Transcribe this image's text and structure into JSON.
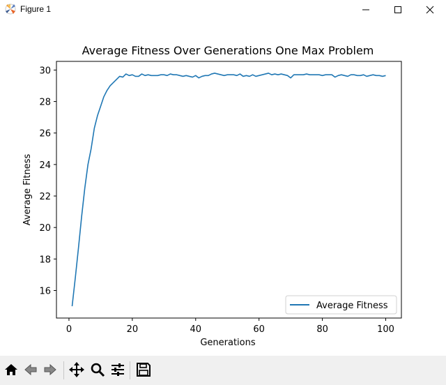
{
  "window": {
    "title": "Figure 1",
    "minimize_icon": "minimize-icon",
    "maximize_icon": "maximize-icon",
    "close_icon": "close-icon"
  },
  "toolbar": {
    "buttons": [
      {
        "name": "home-icon"
      },
      {
        "name": "back-arrow-icon"
      },
      {
        "name": "forward-arrow-icon"
      },
      {
        "name": "pan-move-icon"
      },
      {
        "name": "zoom-magnifier-icon"
      },
      {
        "name": "configure-subplots-icon"
      },
      {
        "name": "save-floppy-icon"
      }
    ]
  },
  "chart_data": {
    "type": "line",
    "title": "Average Fitness Over Generations One Max Problem",
    "xlabel": "Generations",
    "ylabel": "Average Fitness",
    "xlim": [
      -3.95,
      104.95
    ],
    "ylim": [
      14.25,
      30.55
    ],
    "xticks": [
      0,
      20,
      40,
      60,
      80,
      100
    ],
    "yticks": [
      16,
      18,
      20,
      22,
      24,
      26,
      28,
      30
    ],
    "grid": false,
    "legend_location": "lower right",
    "series": [
      {
        "name": "Average Fitness",
        "color": "#1f77b4",
        "x": [
          1,
          2,
          3,
          4,
          5,
          6,
          7,
          8,
          9,
          10,
          11,
          12,
          13,
          14,
          15,
          16,
          17,
          18,
          19,
          20,
          21,
          22,
          23,
          24,
          25,
          26,
          27,
          28,
          29,
          30,
          31,
          32,
          33,
          34,
          35,
          36,
          37,
          38,
          39,
          40,
          41,
          42,
          43,
          44,
          45,
          46,
          47,
          48,
          49,
          50,
          51,
          52,
          53,
          54,
          55,
          56,
          57,
          58,
          59,
          60,
          61,
          62,
          63,
          64,
          65,
          66,
          67,
          68,
          69,
          70,
          71,
          72,
          73,
          74,
          75,
          76,
          77,
          78,
          79,
          80,
          81,
          82,
          83,
          84,
          85,
          86,
          87,
          88,
          89,
          90,
          91,
          92,
          93,
          94,
          95,
          96,
          97,
          98,
          99,
          100
        ],
        "values": [
          15.0,
          16.8,
          18.7,
          20.7,
          22.5,
          24.0,
          25.0,
          26.3,
          27.1,
          27.7,
          28.3,
          28.7,
          29.0,
          29.2,
          29.4,
          29.6,
          29.55,
          29.75,
          29.65,
          29.7,
          29.6,
          29.6,
          29.75,
          29.65,
          29.7,
          29.65,
          29.65,
          29.65,
          29.7,
          29.7,
          29.65,
          29.75,
          29.7,
          29.7,
          29.65,
          29.6,
          29.65,
          29.6,
          29.55,
          29.65,
          29.5,
          29.6,
          29.65,
          29.65,
          29.75,
          29.8,
          29.75,
          29.7,
          29.65,
          29.7,
          29.7,
          29.7,
          29.65,
          29.75,
          29.6,
          29.65,
          29.6,
          29.7,
          29.6,
          29.65,
          29.7,
          29.75,
          29.8,
          29.7,
          29.75,
          29.7,
          29.75,
          29.7,
          29.65,
          29.5,
          29.7,
          29.7,
          29.7,
          29.7,
          29.75,
          29.7,
          29.7,
          29.7,
          29.7,
          29.65,
          29.7,
          29.7,
          29.7,
          29.55,
          29.65,
          29.7,
          29.65,
          29.6,
          29.7,
          29.7,
          29.65,
          29.65,
          29.7,
          29.6,
          29.65,
          29.7,
          29.65,
          29.65,
          29.6,
          29.65
        ]
      }
    ]
  }
}
